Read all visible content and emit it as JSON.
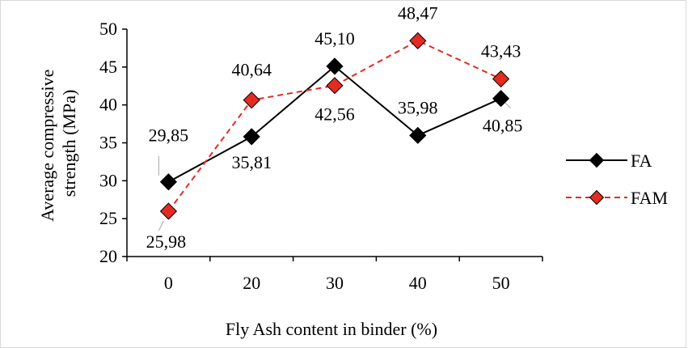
{
  "chart_data": {
    "type": "line",
    "title": "",
    "xlabel": "Fly Ash content in binder (%)",
    "ylabel_lines": [
      "Average compressive",
      "strength (MPa)"
    ],
    "categories": [
      "0",
      "20",
      "30",
      "40",
      "50"
    ],
    "ylim": [
      20,
      50
    ],
    "yticks": [
      20,
      25,
      30,
      35,
      40,
      45,
      50
    ],
    "grid": false,
    "legend_position": "right",
    "series": [
      {
        "name": "FA",
        "values": [
          29.85,
          35.81,
          45.1,
          35.98,
          40.85
        ],
        "labels": [
          "29,85",
          "35,81",
          "45,10",
          "35,98",
          "40,85"
        ],
        "color": "#000000",
        "marker_fill": "#000000",
        "line_style": "solid"
      },
      {
        "name": "FAM",
        "values": [
          25.98,
          40.64,
          42.56,
          48.47,
          43.43
        ],
        "labels": [
          "25,98",
          "40,64",
          "42,56",
          "48,47",
          "43,43"
        ],
        "color": "#e32b22",
        "marker_fill": "#e32b22",
        "line_style": "dashed"
      }
    ]
  }
}
